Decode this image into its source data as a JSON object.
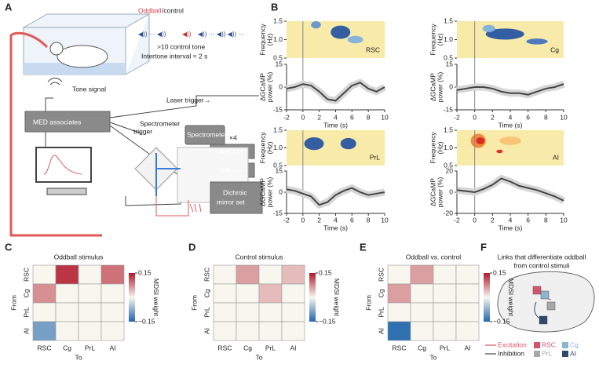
{
  "panel_labels": [
    "A",
    "B",
    "C",
    "D",
    "E",
    "F"
  ],
  "diagram_a": {
    "oddball": "Oddball",
    "control": "/control",
    "control_tone": ">10 control tone",
    "interval": "Intertone interval = 2 s",
    "tone_signal": "Tone signal",
    "laser_trigger": "Laser trigger→",
    "med": "MED associates",
    "spectrometer_trigger": [
      "Spectrometer",
      "trigger"
    ],
    "spectrometer": "Spectrometer",
    "times_four": "×4",
    "laser_405": "405 nm",
    "laser_488": "488 nm",
    "dichroic": [
      "Dichroic",
      "mirror set"
    ]
  },
  "chart_data": [
    {
      "type": "line",
      "title": "RSC",
      "spectrogram_ylabel": [
        "Frequency",
        "(Hz)"
      ],
      "spectrogram_ylim": [
        0.5,
        1.5
      ],
      "spectrogram_yticks": [
        0.5,
        {
          "value": 1,
          "label": "1.0"
        },
        1.5
      ],
      "ylabel": [
        "ΔGCaMP",
        "power (%)"
      ],
      "xlabel": "Time (s)",
      "x": [
        -2,
        -1,
        0,
        1,
        2,
        3,
        4,
        5,
        6,
        7,
        8,
        9,
        10
      ],
      "values": [
        -1,
        0,
        2,
        1,
        -3,
        -8,
        -9,
        -4,
        1,
        3,
        -1,
        -3,
        0
      ],
      "xlim": [
        -2,
        10
      ],
      "xticks": [
        -2,
        0,
        2,
        4,
        6,
        8,
        10
      ],
      "ylim": [
        -15,
        15
      ],
      "yticks": [
        -15,
        0,
        15
      ],
      "color": "#444444"
    },
    {
      "type": "line",
      "title": "Cg",
      "spectrogram_ylabel": [
        "Frequency",
        "(Hz)"
      ],
      "spectrogram_ylim": [
        0.5,
        1.5
      ],
      "spectrogram_yticks": [
        0.5,
        {
          "value": 1,
          "label": "1.0"
        },
        1.5
      ],
      "ylabel": [
        "ΔGCaMP",
        "power (%)"
      ],
      "xlabel": "Time (s)",
      "x": [
        -2,
        -1,
        0,
        1,
        2,
        3,
        4,
        5,
        6,
        7,
        8,
        9,
        10
      ],
      "values": [
        -2,
        -1,
        0,
        0,
        -1,
        -3,
        -4,
        -4,
        -5,
        -3,
        -1,
        0,
        2
      ],
      "xlim": [
        -2,
        10
      ],
      "xticks": [
        -2,
        0,
        2,
        4,
        6,
        8,
        10
      ],
      "ylim": [
        -15,
        15
      ],
      "yticks": [
        -15,
        0,
        15
      ],
      "color": "#444444"
    },
    {
      "type": "line",
      "title": "PrL",
      "spectrogram_ylabel": [
        "Frequency",
        "(Hz)"
      ],
      "spectrogram_ylim": [
        0.5,
        1.5
      ],
      "spectrogram_yticks": [
        0.5,
        {
          "value": 1,
          "label": "1.0"
        },
        1.5
      ],
      "ylabel": [
        "ΔGCaMP",
        "power (%)"
      ],
      "xlabel": "Time (s)",
      "x": [
        -2,
        -1,
        0,
        1,
        2,
        3,
        4,
        5,
        6,
        7,
        8,
        9,
        10
      ],
      "values": [
        2,
        1,
        -1,
        -3,
        -9,
        -7,
        -2,
        1,
        3,
        0,
        -2,
        -1,
        0
      ],
      "xlim": [
        -2,
        10
      ],
      "xticks": [
        -2,
        0,
        2,
        4,
        6,
        8,
        10
      ],
      "ylim": [
        -15,
        15
      ],
      "yticks": [
        -15,
        0,
        15
      ],
      "color": "#444444"
    },
    {
      "type": "line",
      "title": "AI",
      "spectrogram_ylabel": [
        "Frequency",
        "(Hz)"
      ],
      "spectrogram_ylim": [
        0.5,
        1.5
      ],
      "spectrogram_yticks": [
        0.5,
        {
          "value": 1,
          "label": "1.0"
        },
        1.5
      ],
      "ylabel": [
        "ΔGCaMP",
        "power (%)"
      ],
      "xlabel": "Time (s)",
      "x": [
        -2,
        -1,
        0,
        1,
        2,
        3,
        4,
        5,
        6,
        7,
        8,
        9,
        10
      ],
      "values": [
        2,
        1,
        0,
        3,
        7,
        13,
        10,
        6,
        4,
        2,
        -1,
        -4,
        -8
      ],
      "xlim": [
        -2,
        10
      ],
      "xticks": [
        -2,
        0,
        2,
        4,
        6,
        8,
        10
      ],
      "ylim": [
        -20,
        20
      ],
      "yticks": [
        -20,
        0,
        20
      ],
      "color": "#444444"
    },
    {
      "type": "heatmap",
      "title": "Oddball stimulus",
      "categories": [
        "RSC",
        "Cg",
        "PrL",
        "AI"
      ],
      "rows": [
        "RSC",
        "Cg",
        "PrL",
        "AI"
      ],
      "xlabel": "To",
      "ylabel": "From",
      "values": [
        [
          0,
          0.13,
          0,
          0.09
        ],
        [
          0.07,
          0,
          0,
          0
        ],
        [
          0,
          0,
          0,
          0
        ],
        [
          -0.09,
          0,
          0,
          0
        ]
      ],
      "colorbar_label": "MDSI weight",
      "clim": [
        -0.15,
        0.15
      ],
      "cticks": [
        0.15,
        {
          "value": -0.15,
          "label": "−0.15"
        }
      ]
    },
    {
      "type": "heatmap",
      "title": "Control stimulus",
      "categories": [
        "RSC",
        "Cg",
        "PrL",
        "AI"
      ],
      "rows": [
        "RSC",
        "Cg",
        "PrL",
        "AI"
      ],
      "xlabel": "To",
      "ylabel": "From",
      "values": [
        [
          0,
          0.06,
          0,
          0.04
        ],
        [
          0,
          0,
          0.04,
          0
        ],
        [
          0,
          0,
          0,
          0
        ],
        [
          0,
          0,
          0,
          0
        ]
      ],
      "colorbar_label": "MDSI weight",
      "clim": [
        -0.15,
        0.15
      ],
      "cticks": [
        0.15,
        {
          "value": -0.15,
          "label": "−0.15"
        }
      ]
    },
    {
      "type": "heatmap",
      "title": "Oddball vs. control",
      "categories": [
        "RSC",
        "Cg",
        "PrL",
        "AI"
      ],
      "rows": [
        "RSC",
        "Cg",
        "PrL",
        "AI"
      ],
      "xlabel": "To",
      "ylabel": "From",
      "values": [
        [
          0,
          0.06,
          0,
          0
        ],
        [
          0.06,
          0,
          0,
          0
        ],
        [
          0,
          0,
          0,
          0
        ],
        [
          -0.14,
          0,
          0,
          0
        ]
      ],
      "colorbar_label": "MDSI weight",
      "clim": [
        -0.15,
        0.15
      ],
      "cticks": [
        0.15,
        {
          "value": -0.15,
          "label": "−0.15"
        }
      ]
    }
  ],
  "diagram_f": {
    "title": [
      "Links that differentiate oddball",
      "from control stimuli"
    ],
    "excitation": "Excitation",
    "inhibition": "Inhibition",
    "regions": [
      "RSC",
      "PrL",
      "Cg",
      "AI"
    ],
    "region_colors": [
      "#d6546a",
      "#a8a8a8",
      "#8fb4cf",
      "#2e4a6b"
    ]
  }
}
